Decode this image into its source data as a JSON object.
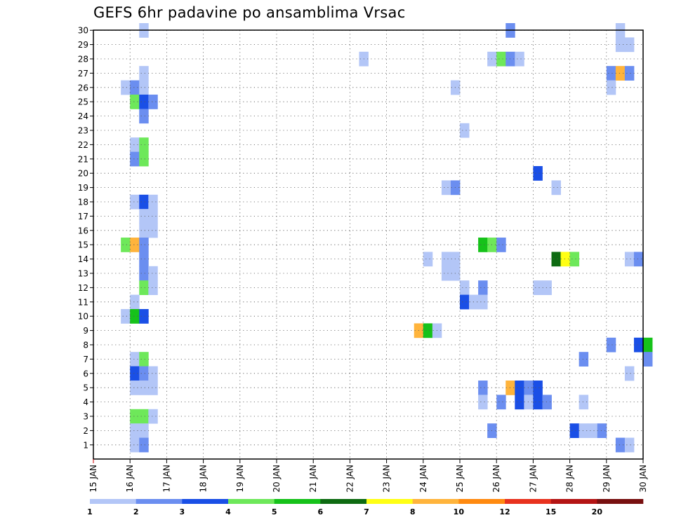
{
  "chart_data": {
    "type": "heatmap",
    "title": "GEFS 6hr padavine po ansamblima Vrsac",
    "xlabel": "",
    "ylabel": "",
    "x_ticks": [
      "15 JAN",
      "16 JAN",
      "17 JAN",
      "18 JAN",
      "19 JAN",
      "20 JAN",
      "21 JAN",
      "22 JAN",
      "23 JAN",
      "24 JAN",
      "25 JAN",
      "26 JAN",
      "27 JAN",
      "28 JAN",
      "29 JAN",
      "30 JAN"
    ],
    "xlim_days": [
      15,
      30
    ],
    "step_hours": 6,
    "members": [
      1,
      2,
      3,
      4,
      5,
      6,
      7,
      8,
      9,
      10,
      11,
      12,
      13,
      14,
      15,
      16,
      17,
      18,
      19,
      20,
      21,
      22,
      23,
      24,
      25,
      26,
      27,
      28,
      29,
      30
    ],
    "grid": true,
    "colorbar": {
      "labels": [
        "1",
        "2",
        "3",
        "4",
        "5",
        "6",
        "7",
        "8",
        "10",
        "12",
        "15",
        "20"
      ],
      "colors": [
        "#b3c6f7",
        "#6b8ef0",
        "#1a4fe6",
        "#6ee85a",
        "#16c21a",
        "#0e6b12",
        "#ffff14",
        "#ffb43c",
        "#ff8a10",
        "#e8321e",
        "#b41414",
        "#781010"
      ]
    },
    "cells": [
      {
        "member": 30,
        "t": 5,
        "level": 1
      },
      {
        "member": 30,
        "t": 45,
        "level": 2
      },
      {
        "member": 30,
        "t": 57,
        "level": 1
      },
      {
        "member": 29,
        "t": 57,
        "level": 1
      },
      {
        "member": 29,
        "t": 58,
        "level": 1
      },
      {
        "member": 28,
        "t": 29,
        "level": 1
      },
      {
        "member": 28,
        "t": 43,
        "level": 1
      },
      {
        "member": 28,
        "t": 44,
        "level": 4
      },
      {
        "member": 28,
        "t": 45,
        "level": 2
      },
      {
        "member": 28,
        "t": 46,
        "level": 1
      },
      {
        "member": 27,
        "t": 5,
        "level": 1
      },
      {
        "member": 27,
        "t": 56,
        "level": 2
      },
      {
        "member": 27,
        "t": 57,
        "level": 8
      },
      {
        "member": 27,
        "t": 58,
        "level": 2
      },
      {
        "member": 26,
        "t": 3,
        "level": 1
      },
      {
        "member": 26,
        "t": 4,
        "level": 2
      },
      {
        "member": 26,
        "t": 5,
        "level": 1
      },
      {
        "member": 26,
        "t": 39,
        "level": 1
      },
      {
        "member": 26,
        "t": 56,
        "level": 1
      },
      {
        "member": 25,
        "t": 4,
        "level": 4
      },
      {
        "member": 25,
        "t": 5,
        "level": 3
      },
      {
        "member": 25,
        "t": 6,
        "level": 2
      },
      {
        "member": 24,
        "t": 5,
        "level": 2
      },
      {
        "member": 23,
        "t": 40,
        "level": 1
      },
      {
        "member": 22,
        "t": 4,
        "level": 1
      },
      {
        "member": 22,
        "t": 5,
        "level": 4
      },
      {
        "member": 21,
        "t": 4,
        "level": 2
      },
      {
        "member": 21,
        "t": 5,
        "level": 4
      },
      {
        "member": 20,
        "t": 48,
        "level": 3
      },
      {
        "member": 19,
        "t": 38,
        "level": 1
      },
      {
        "member": 19,
        "t": 39,
        "level": 2
      },
      {
        "member": 19,
        "t": 50,
        "level": 1
      },
      {
        "member": 18,
        "t": 4,
        "level": 1
      },
      {
        "member": 18,
        "t": 5,
        "level": 3
      },
      {
        "member": 18,
        "t": 6,
        "level": 1
      },
      {
        "member": 17,
        "t": 5,
        "level": 1
      },
      {
        "member": 17,
        "t": 6,
        "level": 1
      },
      {
        "member": 16,
        "t": 5,
        "level": 1
      },
      {
        "member": 16,
        "t": 6,
        "level": 1
      },
      {
        "member": 15,
        "t": 3,
        "level": 4
      },
      {
        "member": 15,
        "t": 4,
        "level": 8
      },
      {
        "member": 15,
        "t": 5,
        "level": 2
      },
      {
        "member": 15,
        "t": 42,
        "level": 5
      },
      {
        "member": 15,
        "t": 43,
        "level": 4
      },
      {
        "member": 15,
        "t": 44,
        "level": 2
      },
      {
        "member": 14,
        "t": 5,
        "level": 2
      },
      {
        "member": 14,
        "t": 36,
        "level": 1
      },
      {
        "member": 14,
        "t": 38,
        "level": 1
      },
      {
        "member": 14,
        "t": 39,
        "level": 1
      },
      {
        "member": 14,
        "t": 50,
        "level": 6
      },
      {
        "member": 14,
        "t": 51,
        "level": 7
      },
      {
        "member": 14,
        "t": 52,
        "level": 4
      },
      {
        "member": 14,
        "t": 58,
        "level": 1
      },
      {
        "member": 14,
        "t": 59,
        "level": 2
      },
      {
        "member": 13,
        "t": 5,
        "level": 2
      },
      {
        "member": 13,
        "t": 6,
        "level": 1
      },
      {
        "member": 13,
        "t": 38,
        "level": 1
      },
      {
        "member": 13,
        "t": 39,
        "level": 1
      },
      {
        "member": 12,
        "t": 5,
        "level": 4
      },
      {
        "member": 12,
        "t": 6,
        "level": 1
      },
      {
        "member": 12,
        "t": 40,
        "level": 1
      },
      {
        "member": 12,
        "t": 42,
        "level": 2
      },
      {
        "member": 12,
        "t": 48,
        "level": 1
      },
      {
        "member": 12,
        "t": 49,
        "level": 1
      },
      {
        "member": 11,
        "t": 4,
        "level": 1
      },
      {
        "member": 11,
        "t": 40,
        "level": 3
      },
      {
        "member": 11,
        "t": 41,
        "level": 1
      },
      {
        "member": 11,
        "t": 42,
        "level": 1
      },
      {
        "member": 10,
        "t": 3,
        "level": 1
      },
      {
        "member": 10,
        "t": 4,
        "level": 5
      },
      {
        "member": 10,
        "t": 5,
        "level": 3
      },
      {
        "member": 9,
        "t": 35,
        "level": 8
      },
      {
        "member": 9,
        "t": 36,
        "level": 5
      },
      {
        "member": 9,
        "t": 37,
        "level": 1
      },
      {
        "member": 8,
        "t": 56,
        "level": 2
      },
      {
        "member": 8,
        "t": 59,
        "level": 3
      },
      {
        "member": 8,
        "t": 60,
        "level": 5
      },
      {
        "member": 7,
        "t": 4,
        "level": 1
      },
      {
        "member": 7,
        "t": 5,
        "level": 4
      },
      {
        "member": 7,
        "t": 53,
        "level": 2
      },
      {
        "member": 7,
        "t": 60,
        "level": 2
      },
      {
        "member": 6,
        "t": 4,
        "level": 3
      },
      {
        "member": 6,
        "t": 5,
        "level": 2
      },
      {
        "member": 6,
        "t": 6,
        "level": 1
      },
      {
        "member": 6,
        "t": 58,
        "level": 1
      },
      {
        "member": 5,
        "t": 4,
        "level": 1
      },
      {
        "member": 5,
        "t": 5,
        "level": 1
      },
      {
        "member": 5,
        "t": 6,
        "level": 1
      },
      {
        "member": 5,
        "t": 42,
        "level": 2
      },
      {
        "member": 5,
        "t": 45,
        "level": 8
      },
      {
        "member": 5,
        "t": 46,
        "level": 3
      },
      {
        "member": 5,
        "t": 47,
        "level": 2
      },
      {
        "member": 5,
        "t": 48,
        "level": 3
      },
      {
        "member": 4,
        "t": 42,
        "level": 1
      },
      {
        "member": 4,
        "t": 44,
        "level": 2
      },
      {
        "member": 4,
        "t": 46,
        "level": 3
      },
      {
        "member": 4,
        "t": 47,
        "level": 1
      },
      {
        "member": 4,
        "t": 48,
        "level": 3
      },
      {
        "member": 4,
        "t": 49,
        "level": 2
      },
      {
        "member": 4,
        "t": 53,
        "level": 1
      },
      {
        "member": 3,
        "t": 4,
        "level": 4
      },
      {
        "member": 3,
        "t": 5,
        "level": 4
      },
      {
        "member": 3,
        "t": 6,
        "level": 1
      },
      {
        "member": 2,
        "t": 4,
        "level": 1
      },
      {
        "member": 2,
        "t": 5,
        "level": 1
      },
      {
        "member": 2,
        "t": 43,
        "level": 2
      },
      {
        "member": 2,
        "t": 52,
        "level": 3
      },
      {
        "member": 2,
        "t": 53,
        "level": 1
      },
      {
        "member": 2,
        "t": 54,
        "level": 1
      },
      {
        "member": 2,
        "t": 55,
        "level": 2
      },
      {
        "member": 1,
        "t": 4,
        "level": 1
      },
      {
        "member": 1,
        "t": 5,
        "level": 2
      },
      {
        "member": 1,
        "t": 57,
        "level": 2
      },
      {
        "member": 1,
        "t": 58,
        "level": 1
      }
    ]
  }
}
